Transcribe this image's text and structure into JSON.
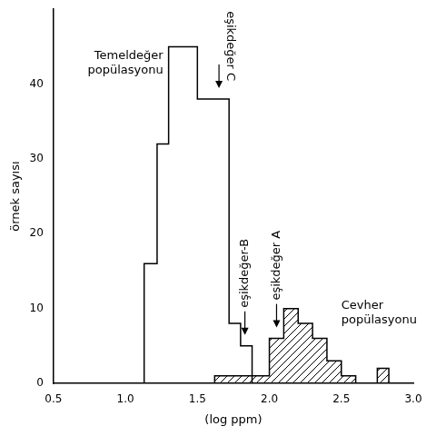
{
  "chart_data": {
    "type": "histogram",
    "x_label": "(log ppm)",
    "y_label": "örnek sayısı",
    "series": [
      {
        "name": "Temeldeğer popülasyonu",
        "color": "#000000",
        "bins": [
          1.13,
          1.22,
          1.3,
          1.5,
          1.72,
          1.8,
          1.88
        ],
        "values": [
          16,
          32,
          45,
          38,
          8,
          5
        ]
      },
      {
        "name": "Cevher popülasyonu",
        "color": "#000000",
        "bins": [
          1.62,
          2.0,
          2.1,
          2.2,
          2.3,
          2.4,
          2.5,
          2.6,
          2.75,
          2.83
        ],
        "values": [
          1,
          6,
          10,
          8,
          6,
          3,
          1,
          0,
          2
        ]
      }
    ],
    "annotations": [
      {
        "text": "eşikdeğer C",
        "x": 1.65
      },
      {
        "text": "eşikdeğer-B",
        "x": 1.83
      },
      {
        "text": "eşikdeğer A",
        "x": 2.05
      }
    ],
    "xlim": [
      0.5,
      3.0
    ],
    "xticks": [
      {
        "value": 0.5,
        "label": "0.5"
      },
      {
        "value": 1,
        "label": "1.0"
      },
      {
        "value": 1.5,
        "label": "1.5"
      },
      {
        "value": 2,
        "label": "2.0"
      },
      {
        "value": 2.5,
        "label": "2.5"
      },
      {
        "value": 3,
        "label": "3.0"
      }
    ],
    "ylim": [
      0,
      50
    ],
    "yticks": [
      0,
      10,
      20,
      30,
      40
    ],
    "grid": false,
    "legend": false
  }
}
